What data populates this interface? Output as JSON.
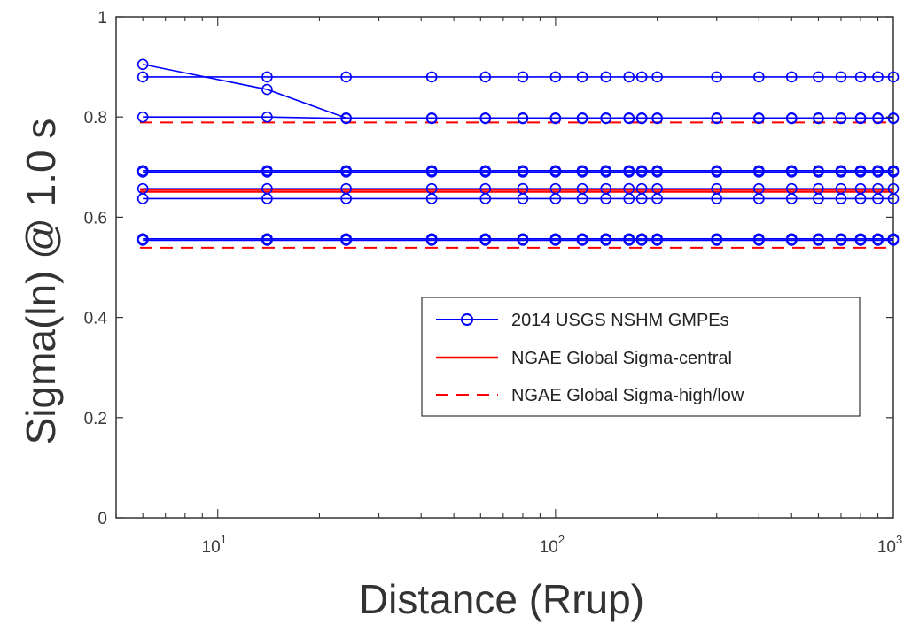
{
  "chart_data": {
    "type": "line",
    "title": "",
    "xlabel": "Distance (Rrup)",
    "ylabel": "Sigma(ln) @ 1.0 s",
    "xscale": "log",
    "xlim": [
      5,
      1000
    ],
    "ylim": [
      0,
      1
    ],
    "yticks": [
      "0",
      "0.2",
      "0.4",
      "0.6",
      "0.8",
      "1"
    ],
    "xticks": [
      {
        "value": 10,
        "base": "10",
        "exp": "1"
      },
      {
        "value": 100,
        "base": "10",
        "exp": "2"
      },
      {
        "value": 1000,
        "base": "10",
        "exp": "3"
      }
    ],
    "grid": false,
    "legend_position": "lower-right",
    "legend": [
      {
        "label": "2014 USGS NSHM GMPEs",
        "style": "blue-circle-line"
      },
      {
        "label": "NGAE Global Sigma-central",
        "style": "red-solid"
      },
      {
        "label": "NGAE Global Sigma-high/low",
        "style": "red-dashed"
      }
    ],
    "colors": {
      "usgs": "#0000ff",
      "ngae": "#ff0000"
    },
    "x": [
      6,
      14,
      24,
      43,
      62,
      80,
      100,
      120,
      141,
      165,
      180,
      200,
      300,
      400,
      500,
      600,
      700,
      800,
      900,
      1000
    ],
    "usgs_series": [
      {
        "values": [
          0.88,
          0.88,
          0.88,
          0.88,
          0.88,
          0.88,
          0.88,
          0.88,
          0.88,
          0.88,
          0.88,
          0.88,
          0.88,
          0.88,
          0.88,
          0.88,
          0.88,
          0.88,
          0.88,
          0.88
        ]
      },
      {
        "values": [
          0.905,
          0.855,
          0.798,
          0.798,
          0.798,
          0.798,
          0.798,
          0.798,
          0.798,
          0.798,
          0.798,
          0.798,
          0.798,
          0.798,
          0.798,
          0.798,
          0.798,
          0.798,
          0.798,
          0.798
        ]
      },
      {
        "values": [
          0.8,
          0.8,
          0.797,
          0.797,
          0.797,
          0.797,
          0.797,
          0.797,
          0.797,
          0.797,
          0.797,
          0.797,
          0.797,
          0.797,
          0.797,
          0.797,
          0.797,
          0.797,
          0.797,
          0.797
        ]
      },
      {
        "values": [
          0.693,
          0.693,
          0.693,
          0.693,
          0.693,
          0.693,
          0.693,
          0.693,
          0.693,
          0.693,
          0.693,
          0.693,
          0.693,
          0.693,
          0.693,
          0.693,
          0.693,
          0.693,
          0.693,
          0.693
        ]
      },
      {
        "values": [
          0.69,
          0.69,
          0.69,
          0.69,
          0.69,
          0.69,
          0.69,
          0.69,
          0.69,
          0.69,
          0.69,
          0.69,
          0.69,
          0.69,
          0.69,
          0.69,
          0.69,
          0.69,
          0.69,
          0.69
        ]
      },
      {
        "values": [
          0.657,
          0.657,
          0.657,
          0.657,
          0.657,
          0.657,
          0.657,
          0.657,
          0.657,
          0.657,
          0.657,
          0.657,
          0.657,
          0.657,
          0.657,
          0.657,
          0.657,
          0.657,
          0.657,
          0.657
        ]
      },
      {
        "values": [
          0.637,
          0.637,
          0.637,
          0.637,
          0.637,
          0.637,
          0.637,
          0.637,
          0.637,
          0.637,
          0.637,
          0.637,
          0.637,
          0.637,
          0.637,
          0.637,
          0.637,
          0.637,
          0.637,
          0.637
        ]
      },
      {
        "values": [
          0.557,
          0.557,
          0.557,
          0.557,
          0.557,
          0.557,
          0.557,
          0.557,
          0.557,
          0.557,
          0.557,
          0.557,
          0.557,
          0.557,
          0.557,
          0.557,
          0.557,
          0.557,
          0.557,
          0.557
        ]
      },
      {
        "values": [
          0.554,
          0.554,
          0.554,
          0.554,
          0.554,
          0.554,
          0.554,
          0.554,
          0.554,
          0.554,
          0.554,
          0.554,
          0.554,
          0.554,
          0.554,
          0.554,
          0.554,
          0.554,
          0.554,
          0.554
        ]
      }
    ],
    "ngae_lines": [
      {
        "style": "solid",
        "value": 0.656
      },
      {
        "style": "solid",
        "value": 0.651
      },
      {
        "style": "dashed",
        "value": 0.789
      },
      {
        "style": "dashed",
        "value": 0.539
      }
    ]
  }
}
